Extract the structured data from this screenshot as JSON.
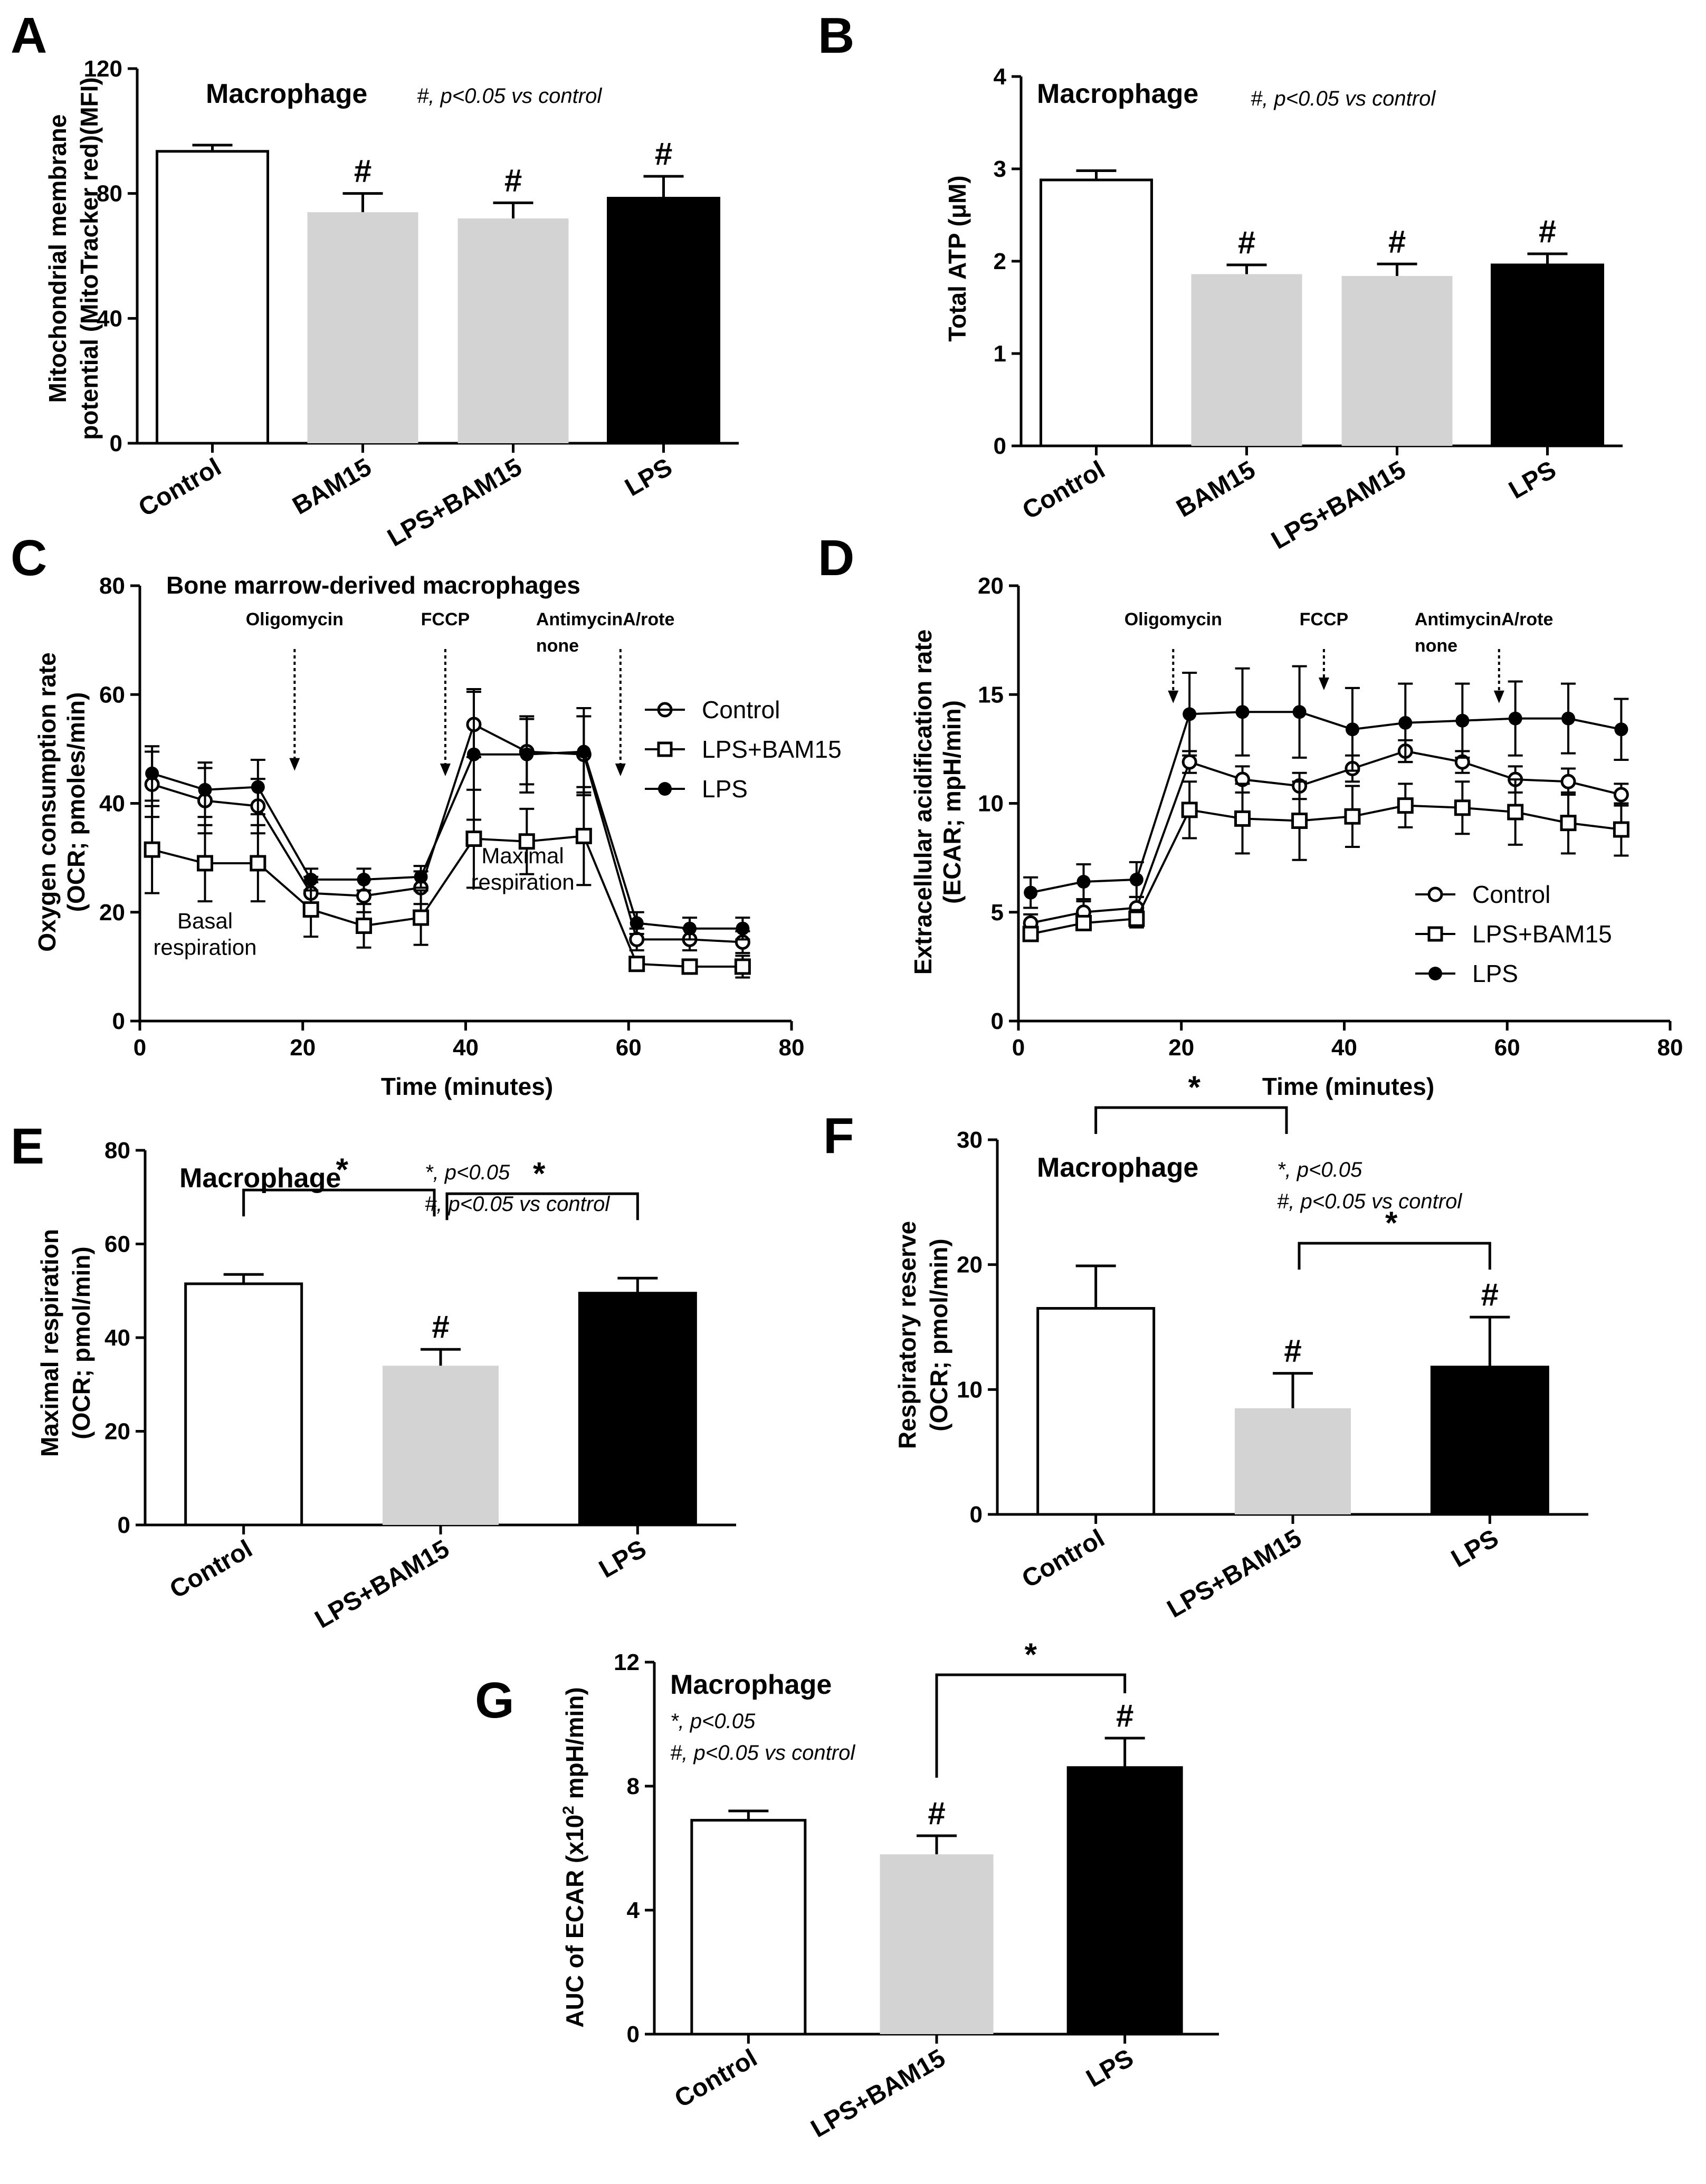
{
  "colors": {
    "control": "#ffffff",
    "bam15": "#d3d3d3",
    "lps": "#000000",
    "stroke": "#000000"
  },
  "chart_data": [
    {
      "panel": "A",
      "type": "bar",
      "title": "Macrophage",
      "note": "#, p<0.05 vs control",
      "ylabel_lines": [
        "Mitochondrial membrane",
        "potential (MitoTracker red)(MFI)"
      ],
      "ylim": [
        0,
        120
      ],
      "yticks": [
        "0",
        "40",
        "80",
        "120"
      ],
      "categories": [
        "Control",
        "BAM15",
        "LPS+BAM15",
        "LPS"
      ],
      "values": [
        93.5,
        74,
        72,
        78.5
      ],
      "errors": [
        2,
        6,
        5,
        7
      ],
      "fills": [
        "control",
        "bam15",
        "bam15",
        "lps"
      ],
      "marks": [
        "",
        "#",
        "#",
        "#"
      ]
    },
    {
      "panel": "B",
      "type": "bar",
      "title": "Macrophage",
      "note": "#, p<0.05 vs control",
      "ylabel_lines": [
        "Total ATP (μM)"
      ],
      "ylim": [
        0,
        4
      ],
      "yticks": [
        "0",
        "1",
        "2",
        "3",
        "4"
      ],
      "categories": [
        "Control",
        "BAM15",
        "LPS+BAM15",
        "LPS"
      ],
      "values": [
        2.88,
        1.86,
        1.84,
        1.96
      ],
      "errors": [
        0.1,
        0.1,
        0.13,
        0.12
      ],
      "fills": [
        "control",
        "bam15",
        "bam15",
        "lps"
      ],
      "marks": [
        "",
        "#",
        "#",
        "#"
      ]
    },
    {
      "panel": "C",
      "type": "line",
      "title": "Bone marrow-derived macrophages",
      "xlabel": "Time (minutes)",
      "ylabel_lines": [
        "Oxygen consumption rate",
        "(OCR; pmoles/min)"
      ],
      "xlim": [
        0,
        80
      ],
      "ylim": [
        0,
        80
      ],
      "xticks": [
        "0",
        "20",
        "40",
        "60",
        "80"
      ],
      "yticks": [
        "0",
        "20",
        "40",
        "60",
        "80"
      ],
      "x": [
        1.5,
        8,
        14.5,
        21,
        27.5,
        34.5,
        41,
        47.5,
        54.5,
        61,
        67.5,
        74
      ],
      "series": [
        {
          "name": "Control",
          "marker": "open-circle",
          "values": [
            43.5,
            40.5,
            39.5,
            23.5,
            23,
            24.5,
            54.5,
            49.5,
            49,
            15,
            15,
            14.5
          ],
          "errors": [
            6,
            6,
            5,
            3,
            3,
            3,
            6,
            6,
            7,
            2,
            2,
            2
          ]
        },
        {
          "name": "LPS+BAM15",
          "marker": "open-square",
          "values": [
            31.5,
            29,
            29,
            20.5,
            17.5,
            19,
            33.5,
            33,
            34,
            10.5,
            10,
            10
          ],
          "errors": [
            8,
            7,
            7,
            5,
            4,
            5,
            9,
            6,
            9,
            1,
            1,
            2
          ]
        },
        {
          "name": "LPS",
          "marker": "filled-circle",
          "values": [
            45.5,
            42.5,
            43,
            26,
            26,
            26.5,
            49,
            49,
            49.5,
            18,
            17,
            17
          ],
          "errors": [
            5,
            5,
            5,
            2,
            2,
            2,
            12,
            7,
            8,
            2,
            2,
            2
          ]
        }
      ],
      "injections": [
        {
          "label_lines": [
            "Oligomycin"
          ],
          "x": 19
        },
        {
          "label_lines": [
            "FCCP"
          ],
          "x": 37.5
        },
        {
          "label_lines": [
            "AntimycinA/rote",
            "none"
          ],
          "x": 59
        }
      ],
      "regions": [
        {
          "label_lines": [
            "Basal",
            "respiration"
          ],
          "x": 8,
          "y": 17
        },
        {
          "label_lines": [
            "Maximal",
            "respiration"
          ],
          "x": 47,
          "y": 29
        }
      ],
      "legend": "right"
    },
    {
      "panel": "D",
      "type": "line",
      "xlabel": "Time (minutes)",
      "ylabel_lines": [
        "Extracellular acidification rate",
        "(ECAR; mpH/min)"
      ],
      "xlim": [
        0,
        80
      ],
      "ylim": [
        0,
        20
      ],
      "xticks": [
        "0",
        "20",
        "40",
        "60",
        "80"
      ],
      "yticks": [
        "0",
        "5",
        "10",
        "15",
        "20"
      ],
      "x": [
        1.5,
        8,
        14.5,
        21,
        27.5,
        34.5,
        41,
        47.5,
        54.5,
        61,
        67.5,
        74
      ],
      "series": [
        {
          "name": "Control",
          "marker": "open-circle",
          "values": [
            4.5,
            5,
            5.2,
            11.9,
            11.1,
            10.8,
            11.6,
            12.4,
            11.9,
            11.1,
            11,
            10.4
          ],
          "errors": [
            0.4,
            0.5,
            0.5,
            0.5,
            0.6,
            0.6,
            0.6,
            0.5,
            0.5,
            0.6,
            0.6,
            0.5
          ]
        },
        {
          "name": "LPS+BAM15",
          "marker": "open-square",
          "values": [
            4,
            4.5,
            4.7,
            9.7,
            9.3,
            9.2,
            9.4,
            9.9,
            9.8,
            9.6,
            9.1,
            8.8
          ],
          "errors": [
            0.3,
            0.3,
            0.4,
            1.3,
            1.6,
            1.8,
            1.4,
            1,
            1.2,
            1.5,
            1.4,
            1.2
          ]
        },
        {
          "name": "LPS",
          "marker": "filled-circle",
          "values": [
            5.9,
            6.4,
            6.5,
            14.1,
            14.2,
            14.2,
            13.4,
            13.7,
            13.8,
            13.9,
            13.9,
            13.4
          ],
          "errors": [
            0.7,
            0.8,
            0.8,
            1.9,
            2,
            2.1,
            1.9,
            1.8,
            1.7,
            1.7,
            1.6,
            1.4
          ]
        }
      ],
      "injections": [
        {
          "label_lines": [
            "Oligomycin"
          ],
          "x": 19
        },
        {
          "label_lines": [
            "FCCP"
          ],
          "x": 37.5
        },
        {
          "label_lines": [
            "AntimycinA/rote",
            "none"
          ],
          "x": 59
        }
      ],
      "legend": "lower-right"
    },
    {
      "panel": "E",
      "type": "bar",
      "title": "Macrophage",
      "note_lines": [
        "*, p<0.05",
        "#, p<0.05 vs control"
      ],
      "ylabel_lines": [
        "Maximal respiration",
        "(OCR; pmol/min)"
      ],
      "ylim": [
        0,
        80
      ],
      "yticks": [
        "0",
        "20",
        "40",
        "60",
        "80"
      ],
      "categories": [
        "Control",
        "LPS+BAM15",
        "LPS"
      ],
      "values": [
        51.5,
        34,
        49.5
      ],
      "errors": [
        2,
        3.5,
        3.2
      ],
      "fills": [
        "control",
        "bam15",
        "lps"
      ],
      "marks": [
        "",
        "#",
        ""
      ],
      "brackets": [
        {
          "from": 0,
          "to": 1,
          "label": "*"
        },
        {
          "from": 1,
          "to": 2,
          "label": "*"
        }
      ]
    },
    {
      "panel": "F",
      "type": "bar",
      "title": "Macrophage",
      "note_lines": [
        "*, p<0.05",
        "#, p<0.05 vs control"
      ],
      "ylabel_lines": [
        "Respiratory reserve",
        "(OCR; pmol/min)"
      ],
      "ylim": [
        0,
        30
      ],
      "yticks": [
        "0",
        "10",
        "20",
        "30"
      ],
      "categories": [
        "Control",
        "LPS+BAM15",
        "LPS"
      ],
      "values": [
        16.5,
        8.5,
        11.8
      ],
      "errors": [
        3.4,
        2.8,
        4
      ],
      "fills": [
        "control",
        "bam15",
        "lps"
      ],
      "marks": [
        "",
        "#",
        "#"
      ],
      "brackets": [
        {
          "from": 0,
          "to": 1,
          "label": "*"
        },
        {
          "from": 1,
          "to": 2,
          "label": "*"
        }
      ]
    },
    {
      "panel": "G",
      "type": "bar",
      "title": "Macrophage",
      "note_lines": [
        "*, p<0.05",
        "#, p<0.05 vs control"
      ],
      "ylabel_lines": [
        "AUC of ECAR (x10",
        "2",
        " mpH/min)"
      ],
      "ylim": [
        0,
        12
      ],
      "yticks": [
        "0",
        "4",
        "8",
        "12"
      ],
      "categories": [
        "Control",
        "LPS+BAM15",
        "LPS"
      ],
      "values": [
        6.9,
        5.8,
        8.6
      ],
      "errors": [
        0.3,
        0.6,
        0.95
      ],
      "fills": [
        "control",
        "bam15",
        "lps"
      ],
      "marks": [
        "",
        "#",
        "#"
      ],
      "brackets": [
        {
          "from": 1,
          "to": 2,
          "label": "*"
        }
      ]
    }
  ]
}
